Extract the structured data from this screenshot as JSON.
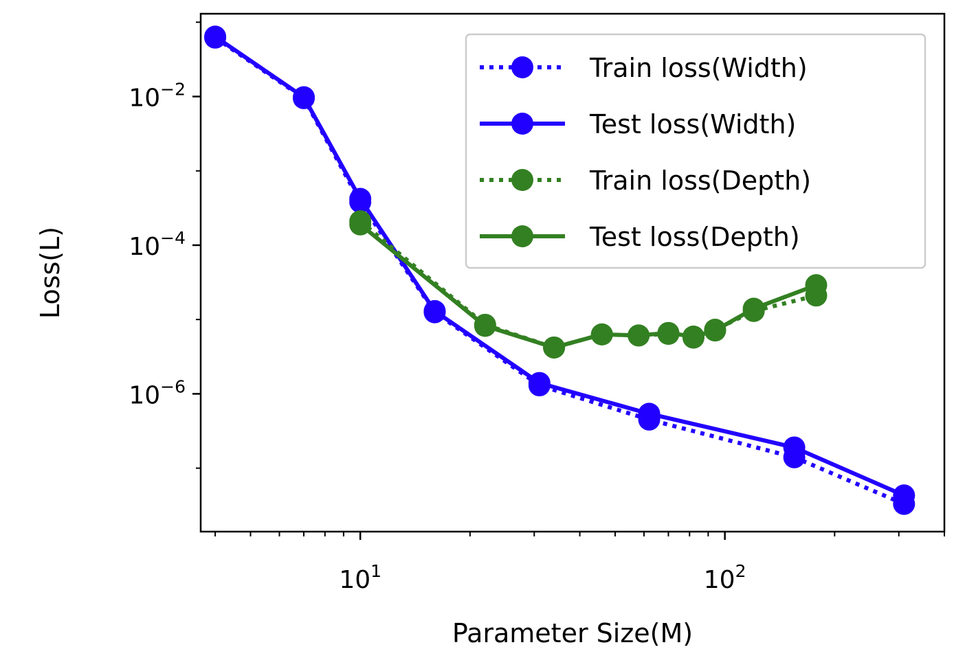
{
  "chart_data": {
    "type": "line",
    "xlabel": "Parameter Size(M)",
    "ylabel": "Loss(L)",
    "xscale": "log",
    "yscale": "log",
    "xlim": [
      3.65,
      400
    ],
    "ylim": [
      1.4e-08,
      0.13
    ],
    "x_ticks": [
      {
        "value": 10,
        "base": "10",
        "exp": "1"
      },
      {
        "value": 100,
        "base": "10",
        "exp": "2"
      }
    ],
    "y_ticks": [
      {
        "value": 0.01,
        "base": "10",
        "exp": "−2"
      },
      {
        "value": 0.0001,
        "base": "10",
        "exp": "−4"
      },
      {
        "value": 1e-06,
        "base": "10",
        "exp": "−6"
      }
    ],
    "grid": false,
    "legend_position": "top-right",
    "series": [
      {
        "name": "Train loss(Width)",
        "color": "#2200ff",
        "linestyle": "dotted",
        "x": [
          4,
          7,
          10,
          16,
          31,
          62,
          155,
          310
        ],
        "y": [
          0.062,
          0.0095,
          0.00038,
          1.25e-05,
          1.3e-06,
          4.5e-07,
          1.4e-07,
          3.3e-08
        ]
      },
      {
        "name": "Test loss(Width)",
        "color": "#2200ff",
        "linestyle": "solid",
        "x": [
          4,
          7,
          10,
          16,
          31,
          62,
          155,
          310
        ],
        "y": [
          0.064,
          0.0098,
          0.00042,
          1.3e-05,
          1.4e-06,
          5.4e-07,
          1.9e-07,
          4.3e-08
        ]
      },
      {
        "name": "Train loss(Depth)",
        "color": "#338022",
        "linestyle": "dotted",
        "x": [
          10,
          22,
          34,
          46,
          58,
          70,
          82,
          94,
          120,
          178
        ],
        "y": [
          0.00021,
          8.5e-06,
          4.2e-06,
          6.3e-06,
          6.1e-06,
          6.4e-06,
          5.7e-06,
          7.3e-06,
          1.3e-05,
          2.1e-05
        ]
      },
      {
        "name": "Test loss(Depth)",
        "color": "#338022",
        "linestyle": "solid",
        "x": [
          10,
          22,
          34,
          46,
          58,
          70,
          82,
          94,
          120,
          178
        ],
        "y": [
          0.00019,
          8.2e-06,
          4.2e-06,
          6.3e-06,
          6.1e-06,
          6.6e-06,
          5.9e-06,
          7.1e-06,
          1.4e-05,
          2.9e-05
        ]
      }
    ]
  }
}
